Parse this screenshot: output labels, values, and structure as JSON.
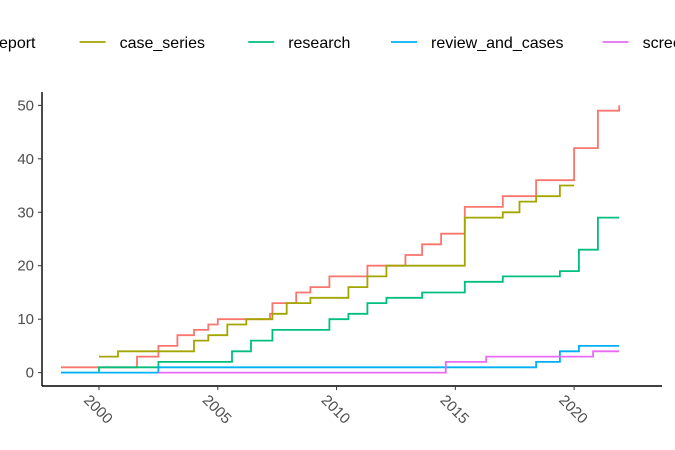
{
  "chart_data": {
    "type": "line",
    "step": true,
    "title": "",
    "xlabel": "",
    "ylabel": "",
    "xlim": [
      1997.6,
      2023.7
    ],
    "ylim": [
      -2.5,
      52.5
    ],
    "x_ticks": [
      "2000",
      "2005",
      "2010",
      "2015",
      "2020"
    ],
    "y_ticks": [
      "0",
      "10",
      "20",
      "30",
      "40",
      "50"
    ],
    "x_tick_rotation": 45,
    "grid": false,
    "legend": {
      "position": "top",
      "entries": [
        "case_report",
        "case_series",
        "research",
        "review_and_cases",
        "scree"
      ]
    },
    "series": [
      {
        "name": "case_report",
        "color": "#F8766D",
        "points": [
          [
            1998.4,
            1
          ],
          [
            2001.6,
            3
          ],
          [
            2002.5,
            5
          ],
          [
            2003.3,
            7
          ],
          [
            2004.0,
            8
          ],
          [
            2004.6,
            9
          ],
          [
            2005.0,
            10
          ],
          [
            2007.2,
            11
          ],
          [
            2007.3,
            13
          ],
          [
            2008.3,
            15
          ],
          [
            2008.9,
            16
          ],
          [
            2009.7,
            18
          ],
          [
            2011.3,
            20
          ],
          [
            2012.9,
            22
          ],
          [
            2013.6,
            24
          ],
          [
            2014.4,
            26
          ],
          [
            2015.4,
            31
          ],
          [
            2017.0,
            33
          ],
          [
            2018.4,
            36
          ],
          [
            2020.0,
            42
          ],
          [
            2021.0,
            49
          ],
          [
            2021.9,
            50
          ]
        ]
      },
      {
        "name": "case_series",
        "color": "#A3A500",
        "points": [
          [
            2000.0,
            3
          ],
          [
            2000.8,
            4
          ],
          [
            2002.5,
            4
          ],
          [
            2004.0,
            6
          ],
          [
            2004.6,
            7
          ],
          [
            2005.4,
            9
          ],
          [
            2006.2,
            10
          ],
          [
            2007.3,
            11
          ],
          [
            2007.9,
            13
          ],
          [
            2008.9,
            14
          ],
          [
            2010.5,
            16
          ],
          [
            2011.3,
            18
          ],
          [
            2012.1,
            20
          ],
          [
            2015.4,
            29
          ],
          [
            2017.0,
            30
          ],
          [
            2017.7,
            32
          ],
          [
            2018.4,
            33
          ],
          [
            2019.4,
            35
          ],
          [
            2020.0,
            35
          ]
        ]
      },
      {
        "name": "research",
        "color": "#00BF7D",
        "points": [
          [
            1998.4,
            0
          ],
          [
            2000.0,
            1
          ],
          [
            2002.5,
            2
          ],
          [
            2005.6,
            4
          ],
          [
            2006.4,
            6
          ],
          [
            2007.3,
            8
          ],
          [
            2009.7,
            10
          ],
          [
            2010.5,
            11
          ],
          [
            2011.3,
            13
          ],
          [
            2012.1,
            14
          ],
          [
            2013.6,
            15
          ],
          [
            2015.4,
            17
          ],
          [
            2017.0,
            18
          ],
          [
            2019.4,
            19
          ],
          [
            2020.2,
            23
          ],
          [
            2021.0,
            29
          ],
          [
            2021.9,
            29
          ]
        ]
      },
      {
        "name": "review_and_cases",
        "color": "#00B0F6",
        "points": [
          [
            1998.4,
            0
          ],
          [
            2002.5,
            1
          ],
          [
            2018.4,
            2
          ],
          [
            2019.4,
            4
          ],
          [
            2020.2,
            5
          ],
          [
            2021.9,
            5
          ]
        ]
      },
      {
        "name": "scree",
        "color": "#E76BF3",
        "points": [
          [
            2002.5,
            0
          ],
          [
            2013.8,
            0
          ],
          [
            2014.6,
            2
          ],
          [
            2016.3,
            3
          ],
          [
            2020.8,
            4
          ],
          [
            2021.9,
            4
          ]
        ]
      }
    ]
  }
}
